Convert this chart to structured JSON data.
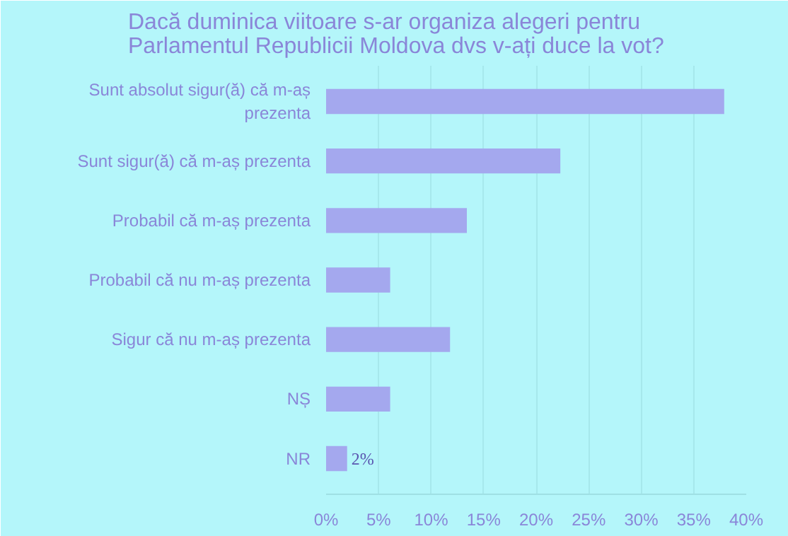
{
  "chart_data": {
    "type": "bar",
    "orientation": "horizontal",
    "title": "Dacă duminica viitoare s-ar organiza alegeri pentru\nParlamentul Republicii Moldova dvs v-ați duce la vot?",
    "categories": [
      "Sunt absolut sigur(ă) că m-aș prezenta",
      "Sunt sigur(ă) că m-aș prezenta",
      "Probabil că m-aș prezenta",
      "Probabil că nu m-aș prezenta",
      "Sigur că nu m-aș prezenta",
      "NȘ",
      "NR"
    ],
    "values": [
      37.9,
      22.3,
      13.4,
      6.1,
      11.8,
      6.1,
      2
    ],
    "value_labels": [
      null,
      null,
      null,
      null,
      null,
      null,
      "2%"
    ],
    "color": "#a4a8ee",
    "xlim": [
      0,
      40
    ],
    "xticks": [
      {
        "value": 0,
        "label": "0%"
      },
      {
        "value": 5,
        "label": "5%"
      },
      {
        "value": 10,
        "label": "10%"
      },
      {
        "value": 15,
        "label": "15%"
      },
      {
        "value": 20,
        "label": "20%"
      },
      {
        "value": 25,
        "label": "25%"
      },
      {
        "value": 30,
        "label": "30%"
      },
      {
        "value": 35,
        "label": "35%"
      },
      {
        "value": 40,
        "label": "40%"
      }
    ],
    "grid": "x"
  }
}
